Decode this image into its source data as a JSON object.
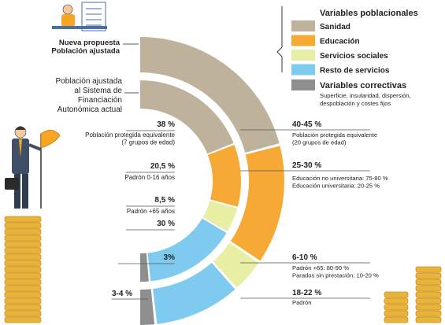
{
  "colors": {
    "sanidad": "#bfb29c",
    "educacion": "#f7a935",
    "servicios_sociales": "#e8eea4",
    "resto_servicios": "#7ecbef",
    "variables_correctivas": "#8f8f8f",
    "coin": "#e8b43a",
    "coin_dark": "#c98d1f",
    "text": "#222222"
  },
  "chart_data": {
    "type": "concentric-semi-donut",
    "rings": [
      {
        "id": "outer",
        "label": "Nueva propuesta\nPoblación ajustada",
        "segments": [
          {
            "name": "Sanidad",
            "range": "40-45 %",
            "value": 42.5,
            "note": "Población protegida equivalente\n(20 grupos de edad)"
          },
          {
            "name": "Educación",
            "range": "25-30 %",
            "value": 27.5,
            "note": "Educación no universitaria: 75-80 %\nEducación universitaria: 20-25 %"
          },
          {
            "name": "Servicios sociales",
            "range": "6-10 %",
            "value": 8,
            "note": "Padrón +65: 80-90 %\nParados sin prestación: 10-20 %"
          },
          {
            "name": "Resto de servicios",
            "range": "18-22 %",
            "value": 20,
            "note": "Padrón"
          },
          {
            "name": "Variables correctivas",
            "range": "3-4 %",
            "value": 3.5,
            "note": ""
          }
        ]
      },
      {
        "id": "inner",
        "label": "Población ajustada\nal Sistema de\nFinanciación\nAutonómica actual",
        "segments": [
          {
            "name": "Sanidad",
            "range": "38 %",
            "value": 38,
            "note": "Población protegida equivalente\n(7 grupos de edad)"
          },
          {
            "name": "Educación",
            "range": "20,5 %",
            "value": 20.5,
            "note": "Padrón 0-16 años"
          },
          {
            "name": "Servicios sociales",
            "range": "8,5 %",
            "value": 8.5,
            "note": "Padrón +65 años"
          },
          {
            "name": "Resto de servicios",
            "range": "30 %",
            "value": 30,
            "note": ""
          },
          {
            "name": "Variables correctivas",
            "range": "3%",
            "value": 3,
            "note": ""
          }
        ]
      }
    ],
    "legend": {
      "placement": "top-right",
      "title_populacionales": "Variables poblacionales",
      "items_populacionales": [
        "Sanidad",
        "Educación",
        "Servicios sociales",
        "Resto de servicios"
      ],
      "title_correctivas": "Variables correctivas",
      "correctivas_note": "Superficie, insularidad, dispersión,\ndespoblación y  costes fijos"
    }
  }
}
